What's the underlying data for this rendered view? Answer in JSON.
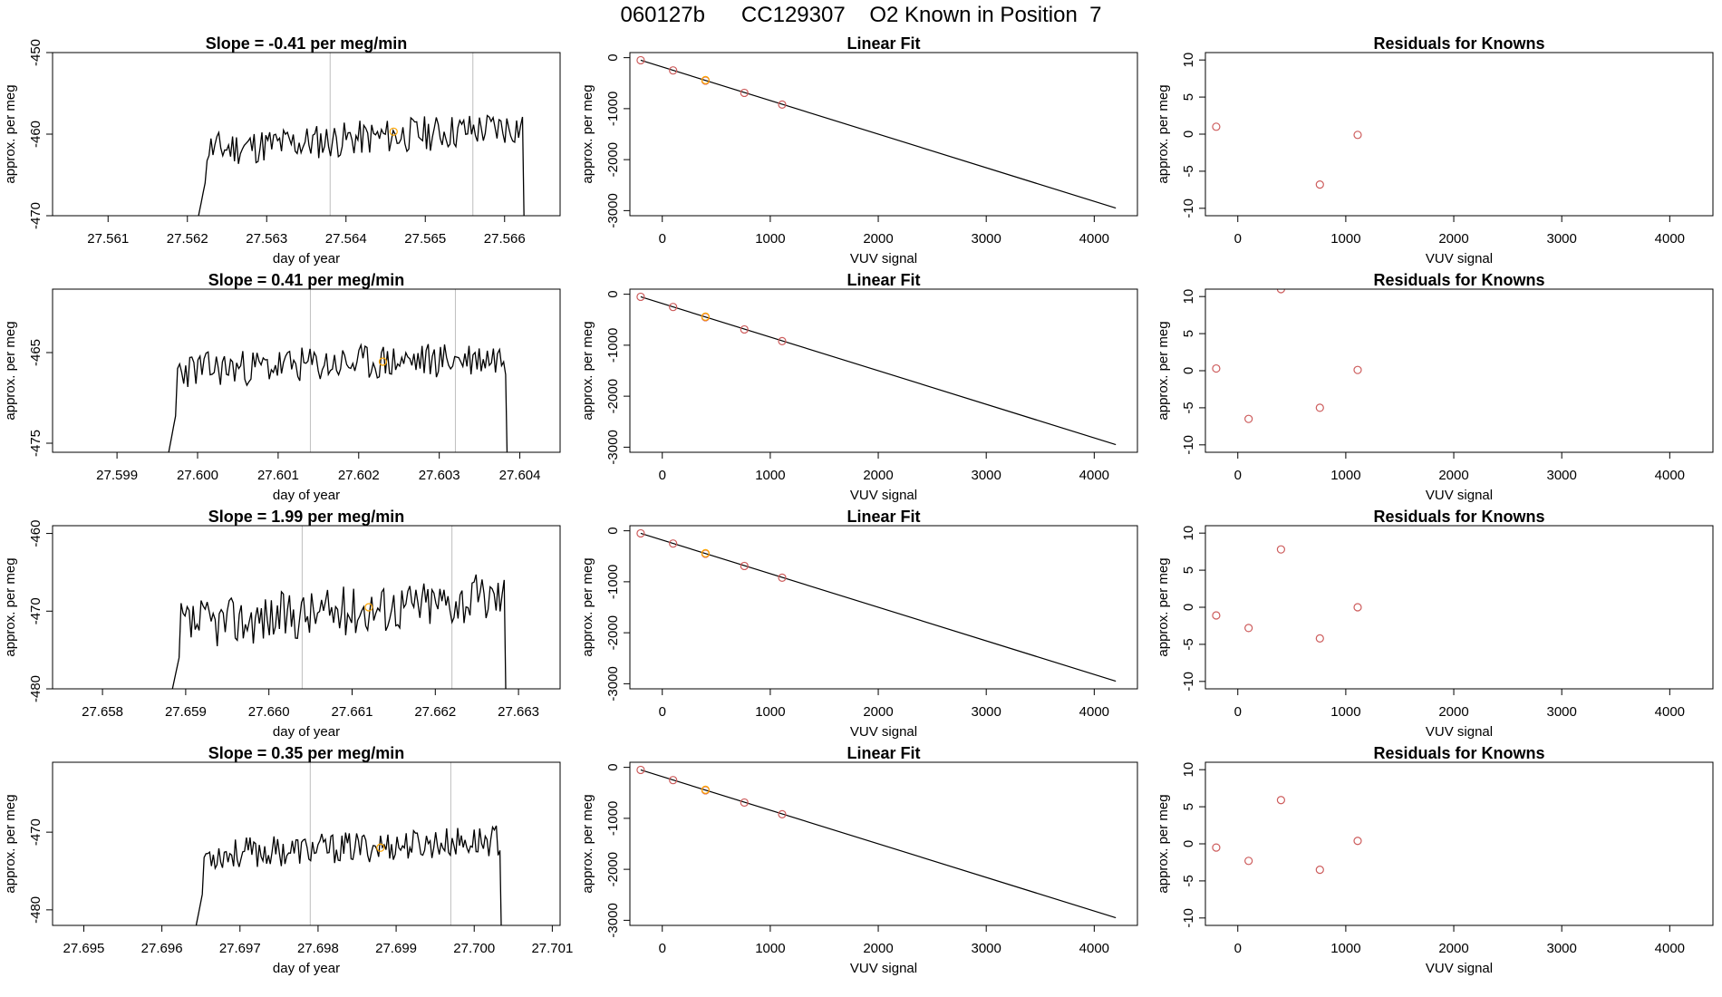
{
  "page_title": "060127b      CC129307    O2 Known in Position  7",
  "colors": {
    "line": "#000000",
    "point": "#cd5c5c",
    "highlight": "#ffa500",
    "guide": "#bebebe"
  },
  "chart_data": [
    {
      "type": "line",
      "row": 1,
      "title": "Slope =  -0.41  per meg/min",
      "xlabel": "day of year",
      "ylabel": "approx. per meg",
      "xlim": [
        27.5603,
        27.5667
      ],
      "ylim": [
        -470,
        -450
      ],
      "xticks": [
        "27.561",
        "27.562",
        "27.563",
        "27.564",
        "27.565",
        "27.566"
      ],
      "yticks": [
        "-470",
        "-460",
        "-450"
      ],
      "x_start": 27.5621,
      "x_end": 27.5663,
      "vlines": [
        27.5638,
        27.5656
      ],
      "highlight_point": {
        "x": 27.5646,
        "y": -459.7
      },
      "seed": 11,
      "base": -462,
      "rise": 3,
      "noise": 2.2
    },
    {
      "type": "scatter",
      "row": 1,
      "title": "Linear Fit",
      "xlabel": "VUV signal",
      "ylabel": "approx. per meg",
      "xlim": [
        -300,
        4400
      ],
      "ylim": [
        -3100,
        100
      ],
      "xticks": [
        "0",
        "1000",
        "2000",
        "3000",
        "4000"
      ],
      "yticks": [
        "-3000",
        "-2000",
        "-1000",
        "0"
      ],
      "fit_line": {
        "x": [
          -200,
          4200
        ],
        "y": [
          -50,
          -2950
        ]
      },
      "points": [
        {
          "x": -200,
          "y": -50
        },
        {
          "x": 100,
          "y": -250
        },
        {
          "x": 400,
          "y": -450
        },
        {
          "x": 760,
          "y": -690
        },
        {
          "x": 1110,
          "y": -920
        }
      ],
      "highlight_point": {
        "x": 400,
        "y": -440
      }
    },
    {
      "type": "scatter",
      "row": 1,
      "title": "Residuals for Knowns",
      "xlabel": "VUV signal",
      "ylabel": "approx. per meg",
      "xlim": [
        -300,
        4400
      ],
      "ylim": [
        -11,
        11
      ],
      "xticks": [
        "0",
        "1000",
        "2000",
        "3000",
        "4000"
      ],
      "yticks": [
        "-10",
        "-5",
        "0",
        "5",
        "10"
      ],
      "points": [
        {
          "x": -200,
          "y": 1.0
        },
        {
          "x": 760,
          "y": -6.8
        },
        {
          "x": 1110,
          "y": -0.1
        }
      ]
    },
    {
      "type": "line",
      "row": 2,
      "title": "Slope =  0.41  per meg/min",
      "xlabel": "day of year",
      "ylabel": "approx. per meg",
      "xlim": [
        27.5982,
        27.6045
      ],
      "ylim": [
        -476,
        -458
      ],
      "xticks": [
        "27.599",
        "27.600",
        "27.601",
        "27.602",
        "27.603",
        "27.604"
      ],
      "yticks": [
        "-475",
        "-465"
      ],
      "x_start": 27.5996,
      "x_end": 27.6039,
      "vlines": [
        27.6014,
        27.6032
      ],
      "highlight_point": {
        "x": 27.6023,
        "y": -466
      },
      "seed": 23,
      "base": -467,
      "rise": 1.5,
      "noise": 2.0
    },
    {
      "type": "scatter",
      "row": 2,
      "title": "Linear Fit",
      "xlabel": "VUV signal",
      "ylabel": "approx. per meg",
      "xlim": [
        -300,
        4400
      ],
      "ylim": [
        -3100,
        100
      ],
      "xticks": [
        "0",
        "1000",
        "2000",
        "3000",
        "4000"
      ],
      "yticks": [
        "-3000",
        "-2000",
        "-1000",
        "0"
      ],
      "fit_line": {
        "x": [
          -200,
          4200
        ],
        "y": [
          -50,
          -2950
        ]
      },
      "points": [
        {
          "x": -200,
          "y": -50
        },
        {
          "x": 100,
          "y": -250
        },
        {
          "x": 400,
          "y": -450
        },
        {
          "x": 760,
          "y": -690
        },
        {
          "x": 1110,
          "y": -920
        }
      ],
      "highlight_point": {
        "x": 400,
        "y": -440
      }
    },
    {
      "type": "scatter",
      "row": 2,
      "title": "Residuals for Knowns",
      "xlabel": "VUV signal",
      "ylabel": "approx. per meg",
      "xlim": [
        -300,
        4400
      ],
      "ylim": [
        -11,
        11
      ],
      "xticks": [
        "0",
        "1000",
        "2000",
        "3000",
        "4000"
      ],
      "yticks": [
        "-10",
        "-5",
        "0",
        "5",
        "10"
      ],
      "points": [
        {
          "x": -200,
          "y": 0.3
        },
        {
          "x": 100,
          "y": -6.5
        },
        {
          "x": 400,
          "y": 11
        },
        {
          "x": 760,
          "y": -5.0
        },
        {
          "x": 1110,
          "y": 0.1
        }
      ]
    },
    {
      "type": "line",
      "row": 3,
      "title": "Slope =  1.99  per meg/min",
      "xlabel": "day of year",
      "ylabel": "approx. per meg",
      "xlim": [
        27.6574,
        27.6635
      ],
      "ylim": [
        -480,
        -459
      ],
      "xticks": [
        "27.658",
        "27.659",
        "27.660",
        "27.661",
        "27.662",
        "27.663"
      ],
      "yticks": [
        "-480",
        "-470",
        "-460"
      ],
      "x_start": 27.6588,
      "x_end": 27.6629,
      "vlines": [
        27.6604,
        27.6622
      ],
      "highlight_point": {
        "x": 27.6612,
        "y": -469.5
      },
      "seed": 37,
      "base": -472,
      "rise": 4,
      "noise": 3.2
    },
    {
      "type": "scatter",
      "row": 3,
      "title": "Linear Fit",
      "xlabel": "VUV signal",
      "ylabel": "approx. per meg",
      "xlim": [
        -300,
        4400
      ],
      "ylim": [
        -3100,
        100
      ],
      "xticks": [
        "0",
        "1000",
        "2000",
        "3000",
        "4000"
      ],
      "yticks": [
        "-3000",
        "-2000",
        "-1000",
        "0"
      ],
      "fit_line": {
        "x": [
          -200,
          4200
        ],
        "y": [
          -50,
          -2950
        ]
      },
      "points": [
        {
          "x": -200,
          "y": -50
        },
        {
          "x": 100,
          "y": -250
        },
        {
          "x": 400,
          "y": -450
        },
        {
          "x": 760,
          "y": -690
        },
        {
          "x": 1110,
          "y": -920
        }
      ],
      "highlight_point": {
        "x": 400,
        "y": -440
      }
    },
    {
      "type": "scatter",
      "row": 3,
      "title": "Residuals for Knowns",
      "xlabel": "VUV signal",
      "ylabel": "approx. per meg",
      "xlim": [
        -300,
        4400
      ],
      "ylim": [
        -11,
        11
      ],
      "xticks": [
        "0",
        "1000",
        "2000",
        "3000",
        "4000"
      ],
      "yticks": [
        "-10",
        "-5",
        "0",
        "5",
        "10"
      ],
      "points": [
        {
          "x": -200,
          "y": -1.1
        },
        {
          "x": 100,
          "y": -2.8
        },
        {
          "x": 400,
          "y": 7.8
        },
        {
          "x": 760,
          "y": -4.2
        },
        {
          "x": 1110,
          "y": 0.0
        }
      ]
    },
    {
      "type": "line",
      "row": 4,
      "title": "Slope =  0.35  per meg/min",
      "xlabel": "day of year",
      "ylabel": "approx. per meg",
      "xlim": [
        27.6946,
        27.7011
      ],
      "ylim": [
        -482,
        -461
      ],
      "xticks": [
        "27.695",
        "27.696",
        "27.697",
        "27.698",
        "27.699",
        "27.700",
        "27.701"
      ],
      "yticks": [
        "-480",
        "-470"
      ],
      "x_start": 27.6964,
      "x_end": 27.7004,
      "vlines": [
        27.6979,
        27.6997
      ],
      "highlight_point": {
        "x": 27.6988,
        "y": -472
      },
      "seed": 53,
      "base": -473,
      "rise": 2,
      "noise": 2.0
    },
    {
      "type": "scatter",
      "row": 4,
      "title": "Linear Fit",
      "xlabel": "VUV signal",
      "ylabel": "approx. per meg",
      "xlim": [
        -300,
        4400
      ],
      "ylim": [
        -3100,
        100
      ],
      "xticks": [
        "0",
        "1000",
        "2000",
        "3000",
        "4000"
      ],
      "yticks": [
        "-3000",
        "-2000",
        "-1000",
        "0"
      ],
      "fit_line": {
        "x": [
          -200,
          4200
        ],
        "y": [
          -50,
          -2950
        ]
      },
      "points": [
        {
          "x": -200,
          "y": -50
        },
        {
          "x": 100,
          "y": -250
        },
        {
          "x": 400,
          "y": -450
        },
        {
          "x": 760,
          "y": -690
        },
        {
          "x": 1110,
          "y": -920
        }
      ],
      "highlight_point": {
        "x": 400,
        "y": -440
      }
    },
    {
      "type": "scatter",
      "row": 4,
      "title": "Residuals for Knowns",
      "xlabel": "VUV signal",
      "ylabel": "approx. per meg",
      "xlim": [
        -300,
        4400
      ],
      "ylim": [
        -11,
        11
      ],
      "xticks": [
        "0",
        "1000",
        "2000",
        "3000",
        "4000"
      ],
      "yticks": [
        "-10",
        "-5",
        "0",
        "5",
        "10"
      ],
      "points": [
        {
          "x": -200,
          "y": -0.5
        },
        {
          "x": 100,
          "y": -2.3
        },
        {
          "x": 400,
          "y": 5.9
        },
        {
          "x": 760,
          "y": -3.5
        },
        {
          "x": 1110,
          "y": 0.4
        }
      ]
    }
  ]
}
